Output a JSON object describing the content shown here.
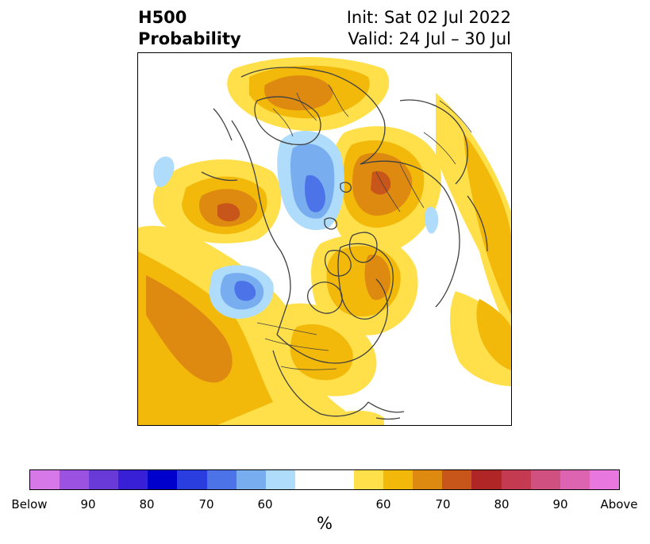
{
  "header": {
    "product": "H500",
    "subtitle": "Probability",
    "init": "Init: Sat 02 Jul 2022",
    "valid": "Valid: 24 Jul – 30 Jul"
  },
  "colorbar": {
    "unit": "%",
    "labels": [
      "Below",
      "90",
      "80",
      "70",
      "60",
      "60",
      "70",
      "80",
      "90",
      "Above"
    ],
    "colors": [
      "#d678e8",
      "#9b52e0",
      "#6a3ad8",
      "#3820d6",
      "#0000cc",
      "#2a3ee0",
      "#4c74e8",
      "#78aef0",
      "#aedcfa",
      "#ffffff",
      "#ffffff",
      "#ffe04a",
      "#f3b90a",
      "#de8a10",
      "#c8561a",
      "#b02626",
      "#c43a50",
      "#d05080",
      "#dc64b0",
      "#e878e0"
    ]
  }
}
